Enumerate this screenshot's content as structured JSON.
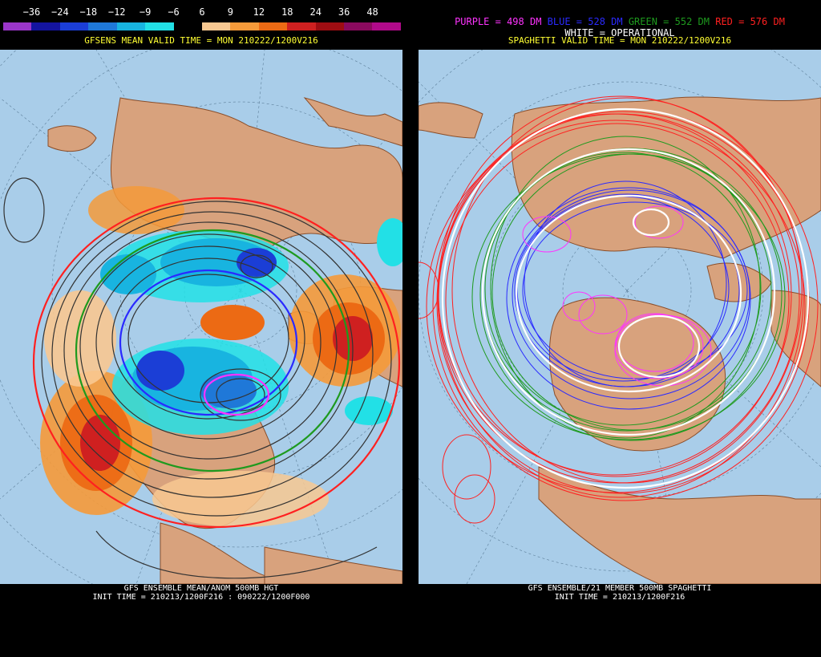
{
  "left_panel": {
    "colorbar": {
      "labels": [
        "−36",
        "−24",
        "−18",
        "−12",
        "−9",
        "−6",
        "6",
        "9",
        "12",
        "18",
        "24",
        "36",
        "48"
      ],
      "colors": [
        "#9a36c9",
        "#1414a0",
        "#1b3ed6",
        "#1f78d8",
        "#18b4e0",
        "#22e0e6",
        "#000000",
        "#f8c891",
        "#f59a3a",
        "#ec6a14",
        "#cf2020",
        "#9e0d12",
        "#8a0a5e",
        "#b00a8a"
      ]
    },
    "title": "GFSENS MEAN VALID TIME = MON 210222/1200V216",
    "footer_line1": "GFS ENSEMBLE MEAN/ANOM 500MB HGT",
    "footer_line2": "INIT TIME = 210213/1200F216 : 090222/1200F000"
  },
  "right_panel": {
    "legend": {
      "purple": "PURPLE = 498 DM",
      "blue": "BLUE = 528 DM",
      "green": "GREEN = 552 DM",
      "red": "RED = 576 DM",
      "white": "WHITE = OPERATIONAL"
    },
    "title": "SPAGHETTI VALID TIME = MON 210222/1200V216",
    "footer_line1": "GFS ENSEMBLE/21 MEMBER 500MB SPAGHETTI",
    "footer_line2": "INIT TIME = 210213/1200F216"
  },
  "colors": {
    "ocean": "#a9cde9",
    "land": "#d8a27d",
    "coast": "#8a4e2a",
    "purple": "#ff33ff",
    "blue": "#2a2aff",
    "green": "#1e9a1e",
    "red": "#ff2020",
    "yellow": "#ffff33"
  }
}
